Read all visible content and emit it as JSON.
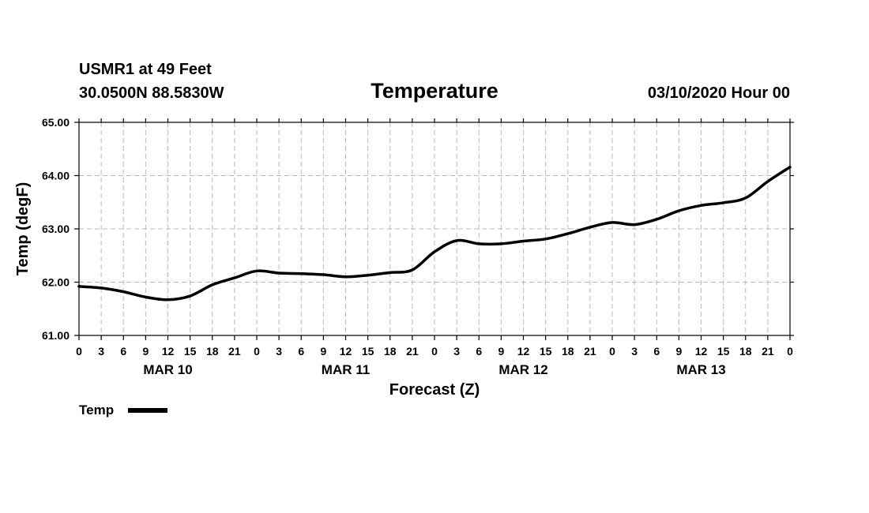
{
  "header": {
    "station": "USMR1 at 49 Feet",
    "coords": "30.0500N 88.5830W",
    "title": "Temperature",
    "datetime": "03/10/2020 Hour 00"
  },
  "legend": {
    "label": "Temp"
  },
  "chart_data": {
    "type": "line",
    "title": "Temperature",
    "xlabel": "Forecast (Z)",
    "ylabel": "Temp (degF)",
    "ylim": [
      61.0,
      65.0
    ],
    "xlim": [
      0,
      96
    ],
    "y_ticks": [
      "61.00",
      "62.00",
      "63.00",
      "64.00",
      "65.00"
    ],
    "x_tick_hours": [
      0,
      3,
      6,
      9,
      12,
      15,
      18,
      21,
      24,
      27,
      30,
      33,
      36,
      39,
      42,
      45,
      48,
      51,
      54,
      57,
      60,
      63,
      66,
      69,
      72,
      75,
      78,
      81,
      84,
      87,
      90,
      93,
      96
    ],
    "x_tick_labels": [
      "0",
      "3",
      "6",
      "9",
      "12",
      "15",
      "18",
      "21",
      "0",
      "3",
      "6",
      "9",
      "12",
      "15",
      "18",
      "21",
      "0",
      "3",
      "6",
      "9",
      "12",
      "15",
      "18",
      "21",
      "0",
      "3",
      "6",
      "9",
      "12",
      "15",
      "18",
      "21",
      "0"
    ],
    "day_labels": [
      {
        "label": "MAR 10",
        "hour": 12
      },
      {
        "label": "MAR 11",
        "hour": 36
      },
      {
        "label": "MAR 12",
        "hour": 60
      },
      {
        "label": "MAR 13",
        "hour": 84
      }
    ],
    "grid": true,
    "legend_position": "bottom-left",
    "series": [
      {
        "name": "Temp",
        "x": [
          0,
          3,
          6,
          9,
          12,
          15,
          18,
          21,
          24,
          27,
          30,
          33,
          36,
          39,
          42,
          45,
          48,
          51,
          54,
          57,
          60,
          63,
          66,
          69,
          72,
          75,
          78,
          81,
          84,
          87,
          90,
          93,
          96
        ],
        "values": [
          61.92,
          61.89,
          61.82,
          61.72,
          61.67,
          61.74,
          61.95,
          62.08,
          62.21,
          62.17,
          62.16,
          62.14,
          62.1,
          62.13,
          62.18,
          62.23,
          62.57,
          62.78,
          62.72,
          62.72,
          62.77,
          62.81,
          62.91,
          63.03,
          63.12,
          63.08,
          63.18,
          63.34,
          63.44,
          63.49,
          63.58,
          63.89,
          64.16
        ]
      }
    ]
  }
}
